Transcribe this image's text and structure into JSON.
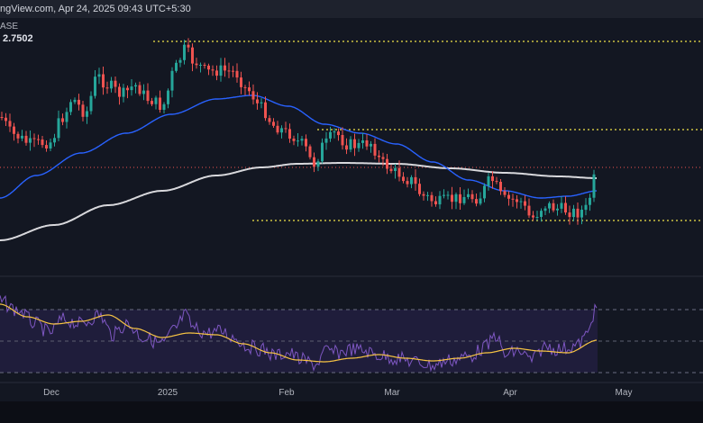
{
  "header": {
    "text": "ngView.com, Apr 24, 2025 09:43 UTC+5:30",
    "pair_partial": "ASE",
    "price": "2.7502"
  },
  "colors": {
    "background": "#131722",
    "up_candle": "#26a69a",
    "down_candle": "#ef5350",
    "ma_long": "#d8d8dc",
    "ma_short": "#2962ff",
    "support_resistance": "#f0e24a",
    "price_line": "#ef5350",
    "rsi": "#7e57c2",
    "rsi_signal": "#f7c443",
    "rsi_band": "#2a2350"
  },
  "chart_data": {
    "type": "candlestick",
    "x_tick_labels": [
      "Dec",
      "2025",
      "Feb",
      "Mar",
      "Apr",
      "May"
    ],
    "last_price": 2.7502,
    "grid": false,
    "horizontal_levels": "three dotted yellow levels (upper resistance, middle resistance, support) plus red dotted current-price line",
    "moving_averages": [
      "long-period MA (white)",
      "short-period MA (blue)"
    ],
    "indicator_panel": "RSI with yellow signal line and shaded band between dashed levels"
  },
  "icons": {}
}
